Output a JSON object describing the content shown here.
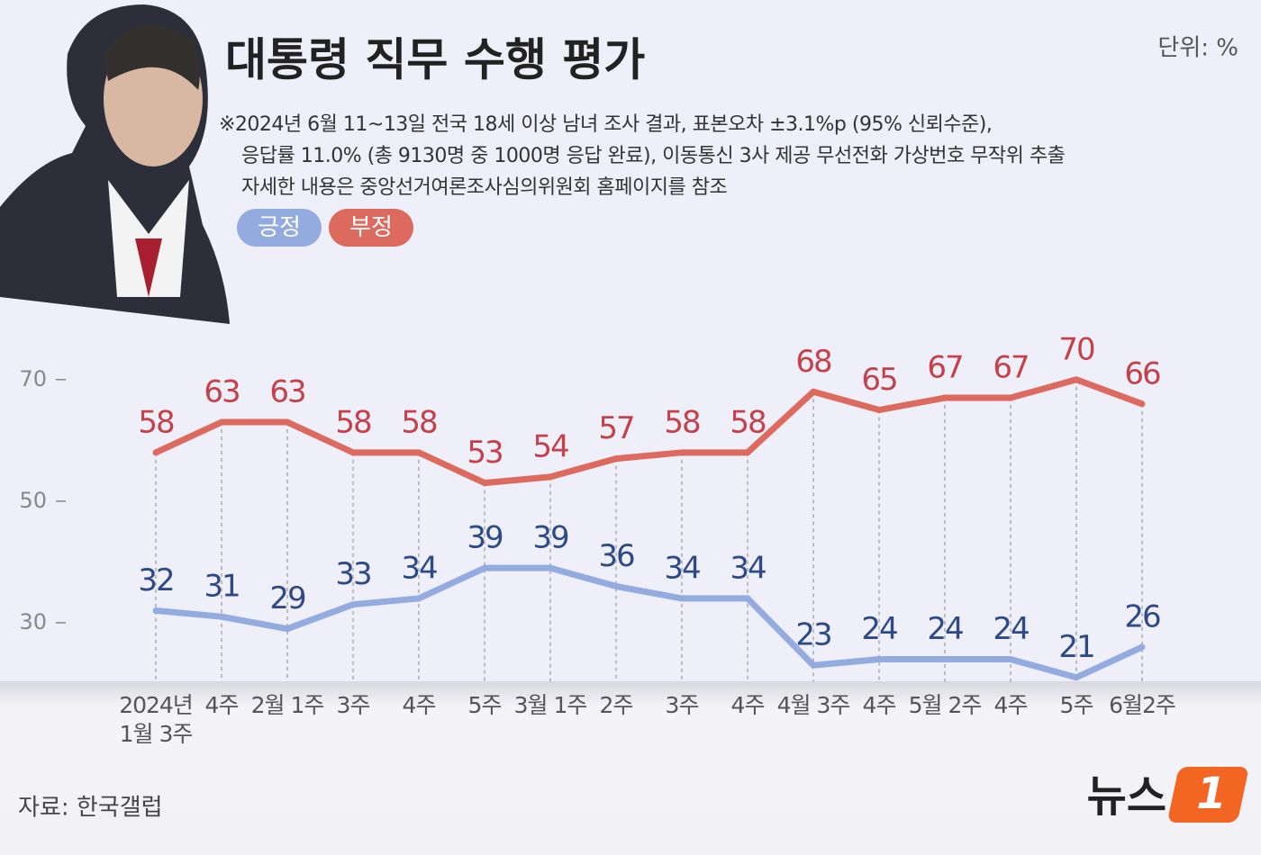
{
  "chart_data": {
    "type": "line",
    "title": "대통령 직무 수행 평가",
    "unit": "단위: %",
    "notes": [
      "※2024년 6월 11~13일 전국 18세 이상 남녀 조사 결과, 표본오차 ±3.1%p (95% 신뢰수준),",
      "응답률 11.0% (총 9130명 중 1000명 응답 완료), 이동통신 3사 제공 무선전화 가상번호 무작위 추출",
      "자세한 내용은 중앙선거여론조사심의위원회 홈페이지를 참조"
    ],
    "categories": [
      "2024년\n1월 3주",
      "4주",
      "2월 1주",
      "3주",
      "4주",
      "5주",
      "3월 1주",
      "2주",
      "3주",
      "4주",
      "4월 3주",
      "4주",
      "5월 2주",
      "4주",
      "5주",
      "6월2주"
    ],
    "series": [
      {
        "name": "긍정",
        "color": "#93abdf",
        "label_color": "#2d4a86",
        "values": [
          32,
          31,
          29,
          33,
          34,
          39,
          39,
          36,
          34,
          34,
          23,
          24,
          24,
          24,
          21,
          26
        ]
      },
      {
        "name": "부정",
        "color": "#dc6a5e",
        "label_color": "#c4414b",
        "values": [
          58,
          63,
          63,
          58,
          58,
          53,
          54,
          57,
          58,
          58,
          68,
          65,
          67,
          67,
          70,
          66
        ]
      }
    ],
    "ylim": [
      20,
      75
    ],
    "yticks": [
      30,
      50,
      70
    ],
    "source": "자료: 한국갤럽",
    "logo": {
      "text": "뉴스",
      "mark": "1"
    }
  }
}
